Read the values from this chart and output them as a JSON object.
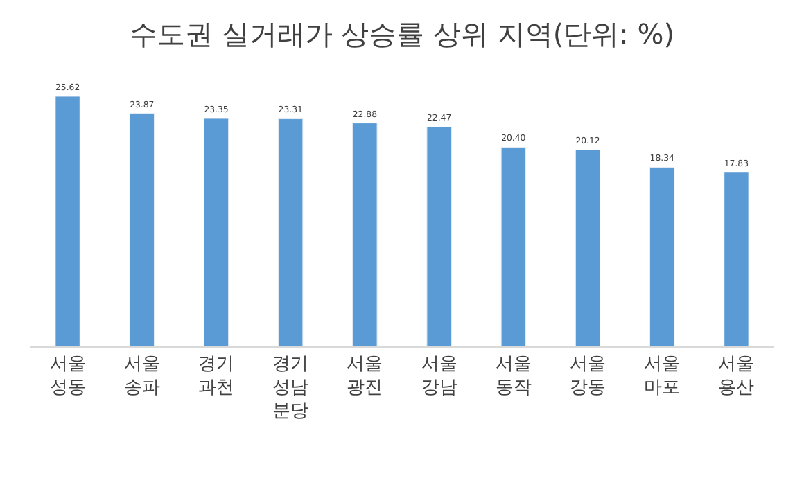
{
  "chart_data": {
    "type": "bar",
    "title": "수도권 실거래가 상승률 상위 지역(단위: %)",
    "categories": [
      "서울\n성동",
      "서울\n송파",
      "경기\n과천",
      "경기\n성남\n분당",
      "서울\n광진",
      "서울\n강남",
      "서울\n동작",
      "서울\n강동",
      "서울\n마포",
      "서울\n용산"
    ],
    "values": [
      25.62,
      23.87,
      23.35,
      23.31,
      22.88,
      22.47,
      20.4,
      20.12,
      18.34,
      17.83
    ],
    "value_labels": [
      "25.62",
      "23.87",
      "23.35",
      "23.31",
      "22.88",
      "22.47",
      "20.40",
      "20.12",
      "18.34",
      "17.83"
    ],
    "color": "#5b9bd5",
    "tick_labels": "x"
  }
}
